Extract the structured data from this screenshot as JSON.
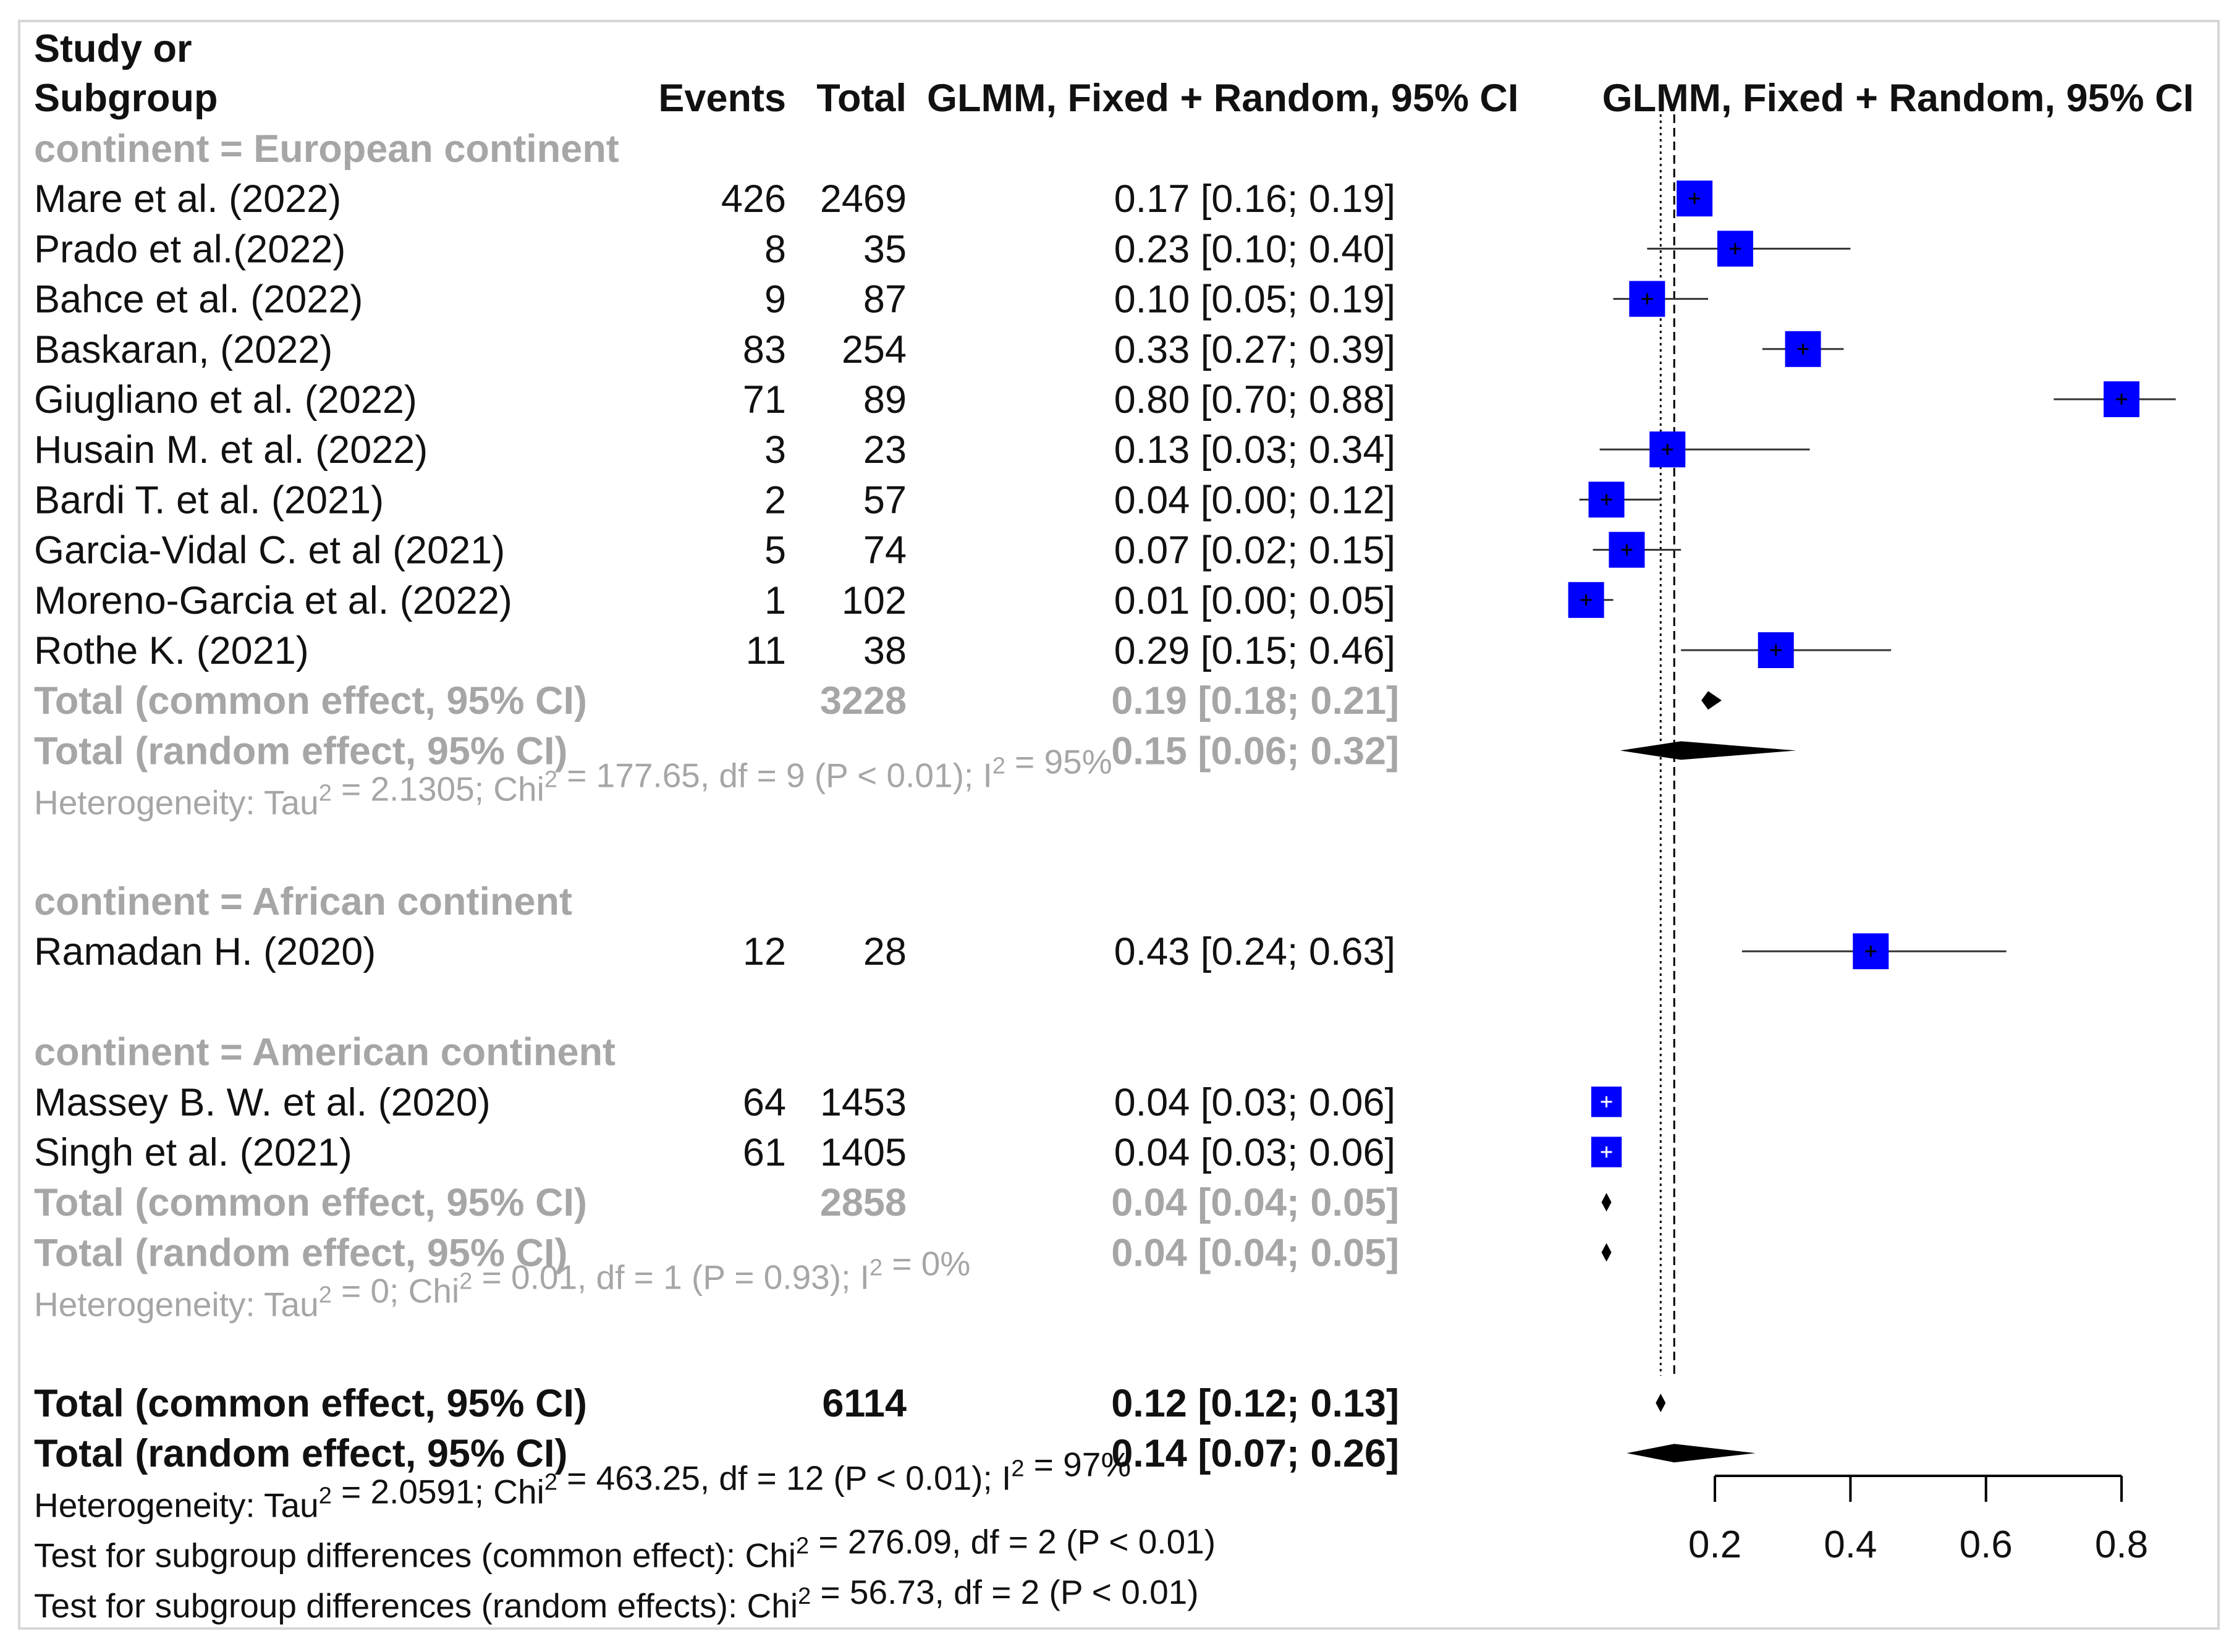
{
  "header": {
    "study_line1": "Study or",
    "study_line2": "Subgroup",
    "events": "Events",
    "total": "Total",
    "ci_col": "GLMM, Fixed + Random, 95% CI",
    "plot_col": "GLMM, Fixed + Random, 95% CI"
  },
  "colors": {
    "box": "#0000ff",
    "grey_text": "#a6a6a6",
    "diamond": "#000000",
    "frame": "#d7d7d7"
  },
  "axis": {
    "ticks": [
      {
        "value": 0.2,
        "label": "0.2"
      },
      {
        "value": 0.4,
        "label": "0.4"
      },
      {
        "value": 0.6,
        "label": "0.6"
      },
      {
        "value": 0.8,
        "label": "0.8"
      }
    ],
    "xlim": [
      0.2,
      0.8
    ],
    "ref_common": 0.12,
    "ref_random": 0.14
  },
  "rows": [
    {
      "kind": "subgroup",
      "label": "continent = European continent"
    },
    {
      "kind": "study",
      "label": "Mare et al. (2022)",
      "events": "426",
      "total": "2469",
      "ci": "0.17 [0.16; 0.19]",
      "est": 0.17,
      "lo": 0.16,
      "hi": 0.19,
      "weight": 1.0
    },
    {
      "kind": "study",
      "label": "Prado et al.(2022)",
      "events": "8",
      "total": "35",
      "ci": "0.23 [0.10; 0.40]",
      "est": 0.23,
      "lo": 0.1,
      "hi": 0.4,
      "weight": 1.0
    },
    {
      "kind": "study",
      "label": "Bahce et al. (2022)",
      "events": "9",
      "total": "87",
      "ci": "0.10 [0.05; 0.19]",
      "est": 0.1,
      "lo": 0.05,
      "hi": 0.19,
      "weight": 1.0
    },
    {
      "kind": "study",
      "label": "Baskaran, (2022)",
      "events": "83",
      "total": "254",
      "ci": "0.33 [0.27; 0.39]",
      "est": 0.33,
      "lo": 0.27,
      "hi": 0.39,
      "weight": 1.0
    },
    {
      "kind": "study",
      "label": "Giugliano  et al. (2022)",
      "events": "71",
      "total": "89",
      "ci": "0.80 [0.70; 0.88]",
      "est": 0.8,
      "lo": 0.7,
      "hi": 0.88,
      "weight": 1.0
    },
    {
      "kind": "study",
      "label": "Husain M. et al. (2022)",
      "events": "3",
      "total": "23",
      "ci": "0.13 [0.03; 0.34]",
      "est": 0.13,
      "lo": 0.03,
      "hi": 0.34,
      "weight": 1.0
    },
    {
      "kind": "study",
      "label": "Bardi T. et al. (2021)",
      "events": "2",
      "total": "57",
      "ci": "0.04 [0.00; 0.12]",
      "est": 0.04,
      "lo": 0.0,
      "hi": 0.12,
      "weight": 1.0
    },
    {
      "kind": "study",
      "label": "Garcia-Vidal C. et al (2021)",
      "events": "5",
      "total": "74",
      "ci": "0.07 [0.02; 0.15]",
      "est": 0.07,
      "lo": 0.02,
      "hi": 0.15,
      "weight": 1.0
    },
    {
      "kind": "study",
      "label": "Moreno-Garcia et al. (2022)",
      "events": "1",
      "total": "102",
      "ci": "0.01 [0.00; 0.05]",
      "est": 0.01,
      "lo": 0.0,
      "hi": 0.05,
      "weight": 1.0
    },
    {
      "kind": "study",
      "label": "Rothe K. (2021)",
      "events": "11",
      "total": "38",
      "ci": "0.29 [0.15; 0.46]",
      "est": 0.29,
      "lo": 0.15,
      "hi": 0.46,
      "weight": 1.0
    },
    {
      "kind": "pooled",
      "style": "grey",
      "label": "Total (common effect, 95% CI)",
      "total": "3228",
      "ci": "0.19 [0.18; 0.21]",
      "est": 0.19,
      "lo": 0.18,
      "hi": 0.21
    },
    {
      "kind": "pooled",
      "style": "grey",
      "label": "Total (random effect, 95% CI)",
      "total": "",
      "ci": "0.15 [0.06; 0.32]",
      "est": 0.15,
      "lo": 0.06,
      "hi": 0.32
    },
    {
      "kind": "het",
      "style": "grey",
      "text": "Heterogeneity: Tau² = 2.1305; Chi² = 177.65, df = 9 (P < 0.01); I² = 95%"
    },
    {
      "kind": "blank"
    },
    {
      "kind": "subgroup",
      "label": "continent = African continent"
    },
    {
      "kind": "study",
      "label": "Ramadan H. (2020)",
      "events": "12",
      "total": "28",
      "ci": "0.43 [0.24; 0.63]",
      "est": 0.43,
      "lo": 0.24,
      "hi": 0.63,
      "weight": 1.0
    },
    {
      "kind": "blank"
    },
    {
      "kind": "subgroup",
      "label": "continent = American continent"
    },
    {
      "kind": "study",
      "label": "Massey B. W. et al. (2020)",
      "events": "64",
      "total": "1453",
      "ci": "0.04 [0.03; 0.06]",
      "est": 0.04,
      "lo": 0.03,
      "hi": 0.06,
      "weight": 0.85
    },
    {
      "kind": "study",
      "label": "Singh et al. (2021)",
      "events": "61",
      "total": "1405",
      "ci": "0.04 [0.03; 0.06]",
      "est": 0.04,
      "lo": 0.03,
      "hi": 0.06,
      "weight": 0.85
    },
    {
      "kind": "pooled",
      "style": "grey",
      "label": "Total (common effect, 95% CI)",
      "total": "2858",
      "ci": "0.04 [0.04; 0.05]",
      "est": 0.04,
      "lo": 0.04,
      "hi": 0.05
    },
    {
      "kind": "pooled",
      "style": "grey",
      "label": "Total (random effect, 95% CI)",
      "total": "",
      "ci": "0.04 [0.04; 0.05]",
      "est": 0.04,
      "lo": 0.04,
      "hi": 0.05
    },
    {
      "kind": "het",
      "style": "grey",
      "text": "Heterogeneity: Tau² = 0; Chi² = 0.01, df = 1 (P = 0.93); I² = 0%"
    },
    {
      "kind": "blank"
    },
    {
      "kind": "pooled",
      "style": "bold",
      "label": "Total (common effect, 95% CI)",
      "total": "6114",
      "ci": "0.12 [0.12; 0.13]",
      "est": 0.12,
      "lo": 0.12,
      "hi": 0.13
    },
    {
      "kind": "pooled",
      "style": "bold",
      "label": "Total (random effect, 95% CI)",
      "total": "",
      "ci": "0.14 [0.07; 0.26]",
      "est": 0.14,
      "lo": 0.07,
      "hi": 0.26
    },
    {
      "kind": "het",
      "style": "black",
      "text": "Heterogeneity: Tau² = 2.0591; Chi² = 463.25, df = 12 (P < 0.01); I² = 97%"
    },
    {
      "kind": "het",
      "style": "black",
      "text": "Test for subgroup differences (common effect): Chi² = 276.09, df = 2 (P < 0.01)"
    },
    {
      "kind": "het",
      "style": "black",
      "text": "Test for subgroup differences (random effects): Chi² = 56.73, df = 2 (P < 0.01)"
    }
  ],
  "chart_data": {
    "type": "forest",
    "title": "",
    "xlabel": "",
    "measure": "Proportion (GLMM, Fixed + Random, 95% CI)",
    "xlim": [
      0.2,
      0.8
    ],
    "ticks": [
      0.2,
      0.4,
      0.6,
      0.8
    ],
    "reference_lines": {
      "common": 0.12,
      "random": 0.14
    },
    "subgroups": [
      {
        "name": "continent = European continent",
        "studies": [
          {
            "study": "Mare et al. (2022)",
            "events": 426,
            "total": 2469,
            "est": 0.17,
            "lo": 0.16,
            "hi": 0.19
          },
          {
            "study": "Prado et al.(2022)",
            "events": 8,
            "total": 35,
            "est": 0.23,
            "lo": 0.1,
            "hi": 0.4
          },
          {
            "study": "Bahce et al. (2022)",
            "events": 9,
            "total": 87,
            "est": 0.1,
            "lo": 0.05,
            "hi": 0.19
          },
          {
            "study": "Baskaran, (2022)",
            "events": 83,
            "total": 254,
            "est": 0.33,
            "lo": 0.27,
            "hi": 0.39
          },
          {
            "study": "Giugliano  et al. (2022)",
            "events": 71,
            "total": 89,
            "est": 0.8,
            "lo": 0.7,
            "hi": 0.88
          },
          {
            "study": "Husain M. et al. (2022)",
            "events": 3,
            "total": 23,
            "est": 0.13,
            "lo": 0.03,
            "hi": 0.34
          },
          {
            "study": "Bardi T. et al. (2021)",
            "events": 2,
            "total": 57,
            "est": 0.04,
            "lo": 0.0,
            "hi": 0.12
          },
          {
            "study": "Garcia-Vidal C. et al (2021)",
            "events": 5,
            "total": 74,
            "est": 0.07,
            "lo": 0.02,
            "hi": 0.15
          },
          {
            "study": "Moreno-Garcia et al. (2022)",
            "events": 1,
            "total": 102,
            "est": 0.01,
            "lo": 0.0,
            "hi": 0.05
          },
          {
            "study": "Rothe K. (2021)",
            "events": 11,
            "total": 38,
            "est": 0.29,
            "lo": 0.15,
            "hi": 0.46
          }
        ],
        "common": {
          "total": 3228,
          "est": 0.19,
          "lo": 0.18,
          "hi": 0.21
        },
        "random": {
          "est": 0.15,
          "lo": 0.06,
          "hi": 0.32
        }
      },
      {
        "name": "continent = African continent",
        "studies": [
          {
            "study": "Ramadan H. (2020)",
            "events": 12,
            "total": 28,
            "est": 0.43,
            "lo": 0.24,
            "hi": 0.63
          }
        ]
      },
      {
        "name": "continent = American continent",
        "studies": [
          {
            "study": "Massey B. W. et al. (2020)",
            "events": 64,
            "total": 1453,
            "est": 0.04,
            "lo": 0.03,
            "hi": 0.06
          },
          {
            "study": "Singh et al. (2021)",
            "events": 61,
            "total": 1405,
            "est": 0.04,
            "lo": 0.03,
            "hi": 0.06
          }
        ],
        "common": {
          "total": 2858,
          "est": 0.04,
          "lo": 0.04,
          "hi": 0.05
        },
        "random": {
          "est": 0.04,
          "lo": 0.04,
          "hi": 0.05
        }
      }
    ],
    "overall": {
      "common": {
        "total": 6114,
        "est": 0.12,
        "lo": 0.12,
        "hi": 0.13
      },
      "random": {
        "est": 0.14,
        "lo": 0.07,
        "hi": 0.26
      }
    }
  }
}
